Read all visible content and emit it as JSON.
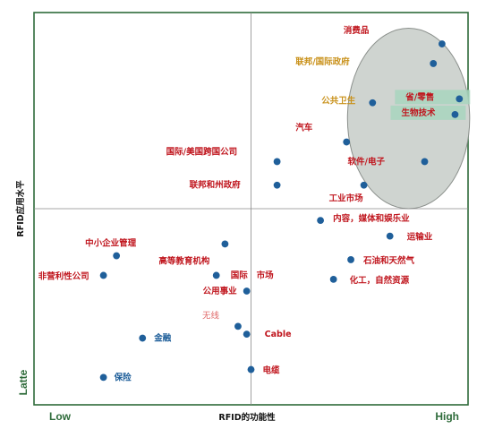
{
  "chart_data": {
    "type": "scatter",
    "xlabel": "RFID的功能性",
    "ylabel": "RFID应用水平",
    "x_low_label": "Low",
    "x_high_label": "High",
    "y_low_label": "Latte",
    "xlim": [
      0,
      10
    ],
    "ylim": [
      0,
      10
    ],
    "quadrant_x": 5,
    "quadrant_y": 5,
    "highlight_region": "top-right ellipse",
    "colors": {
      "point": "#1f5f9a",
      "label_red": "#c0161e",
      "label_gold": "#c9911a",
      "label_blue": "#1f5f9a",
      "label_pink": "#e06a6a",
      "frame": "#2e6b3a",
      "ellipse_fill": "#cfd4d0",
      "label_bg": "#a8d5be"
    },
    "points": [
      {
        "label": "消费品",
        "x": 9.4,
        "y": 9.2,
        "color": "red"
      },
      {
        "label": "联邦/国际政府",
        "x": 9.2,
        "y": 8.7,
        "color": "gold"
      },
      {
        "label": "公共卫生",
        "x": 7.8,
        "y": 7.7,
        "color": "gold"
      },
      {
        "label": "省/零售",
        "x": 9.8,
        "y": 7.8,
        "color": "red",
        "boxed": true
      },
      {
        "label": "生物技术",
        "x": 9.7,
        "y": 7.4,
        "color": "red",
        "boxed": true
      },
      {
        "label": "汽车",
        "x": 7.2,
        "y": 6.7,
        "color": "red"
      },
      {
        "label": "软件/电子",
        "x": 9.0,
        "y": 6.2,
        "color": "red"
      },
      {
        "label": "国际/美国跨国公司",
        "x": 5.6,
        "y": 6.2,
        "color": "red"
      },
      {
        "label": "联邦和州政府",
        "x": 5.6,
        "y": 5.6,
        "color": "red"
      },
      {
        "label": "工业市场",
        "x": 7.6,
        "y": 5.6,
        "color": "red"
      },
      {
        "label": "内容，媒体和娱乐业",
        "x": 6.6,
        "y": 4.7,
        "color": "red"
      },
      {
        "label": "运输业",
        "x": 8.2,
        "y": 4.3,
        "color": "red"
      },
      {
        "label": "石油和天然气",
        "x": 7.3,
        "y": 3.7,
        "color": "red"
      },
      {
        "label": "化工，自然资源",
        "x": 6.9,
        "y": 3.2,
        "color": "red"
      },
      {
        "label": "中小企业管理",
        "x": 1.9,
        "y": 3.8,
        "color": "red"
      },
      {
        "label": "高等教育机构",
        "x": 4.4,
        "y": 4.1,
        "color": "red"
      },
      {
        "label": "非营利性公司",
        "x": 1.6,
        "y": 3.3,
        "color": "red"
      },
      {
        "label": "国际",
        "x": 4.2,
        "y": 3.3,
        "color": "red"
      },
      {
        "label": "市场",
        "x": 4.9,
        "y": 3.3,
        "color": "red",
        "no_point": true
      },
      {
        "label": "公用事业",
        "x": 4.9,
        "y": 2.9,
        "color": "red"
      },
      {
        "label": "无线",
        "x": 4.7,
        "y": 2.0,
        "color": "pink"
      },
      {
        "label": "Cable",
        "x": 4.9,
        "y": 1.8,
        "color": "red"
      },
      {
        "label": "金融",
        "x": 2.5,
        "y": 1.7,
        "color": "blue"
      },
      {
        "label": "电缆",
        "x": 5.0,
        "y": 0.9,
        "color": "red"
      },
      {
        "label": "保险",
        "x": 1.6,
        "y": 0.7,
        "color": "blue"
      }
    ]
  }
}
